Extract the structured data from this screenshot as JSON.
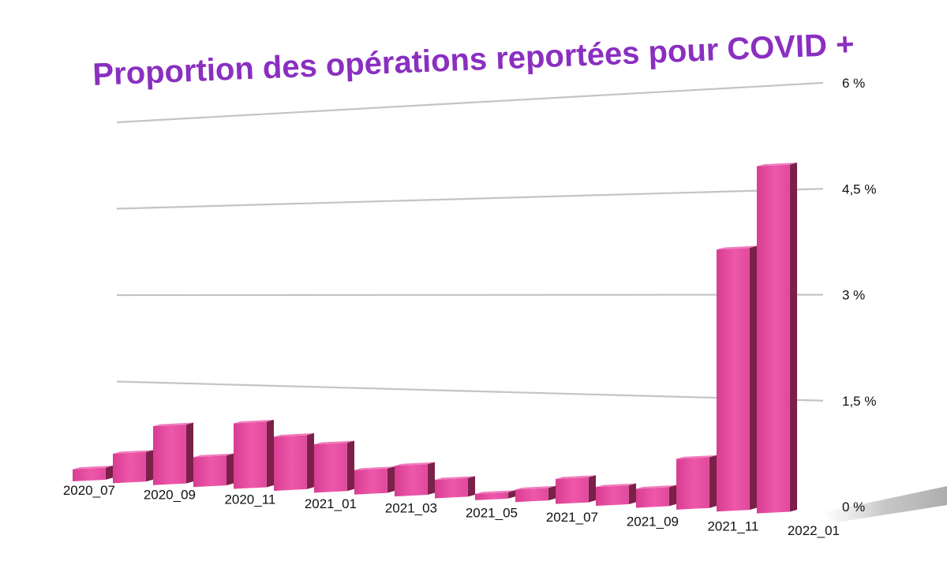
{
  "chart_data": {
    "type": "bar",
    "title": "Proportion des opérations reportées pour COVID +",
    "xlabel": "",
    "ylabel": "",
    "ylim": [
      0,
      6
    ],
    "yticks": [
      {
        "value": 0,
        "label": "0 %"
      },
      {
        "value": 1.5,
        "label": "1,5 %"
      },
      {
        "value": 3,
        "label": "3 %"
      },
      {
        "value": 4.5,
        "label": "4,5 %"
      },
      {
        "value": 6,
        "label": "6 %"
      }
    ],
    "categories": [
      "2020_07",
      "2020_08",
      "2020_09",
      "2020_10",
      "2020_11",
      "2020_12",
      "2021_01",
      "2021_02",
      "2021_03",
      "2021_04",
      "2021_05",
      "2021_06",
      "2021_07",
      "2021_08",
      "2021_09",
      "2021_10",
      "2021_11",
      "2021_12",
      "2022_01"
    ],
    "values": [
      0.1,
      0.4,
      0.9,
      0.4,
      1.0,
      0.8,
      0.7,
      0.3,
      0.4,
      0.2,
      0.0,
      0.1,
      0.3,
      0.2,
      0.2,
      0.7,
      4.0,
      5.3,
      null
    ],
    "x_tick_labels": [
      "2020_07",
      "2020_09",
      "2020_11",
      "2021_01",
      "2021_03",
      "2021_05",
      "2021_07",
      "2021_09",
      "2021_11",
      "2022_01"
    ],
    "colors": {
      "bar_front": "#ea4ea2",
      "bar_top": "#f07dbd",
      "bar_side": "#7a2049",
      "title": "#8a2fc0",
      "grid": "#c4c4c4"
    }
  }
}
